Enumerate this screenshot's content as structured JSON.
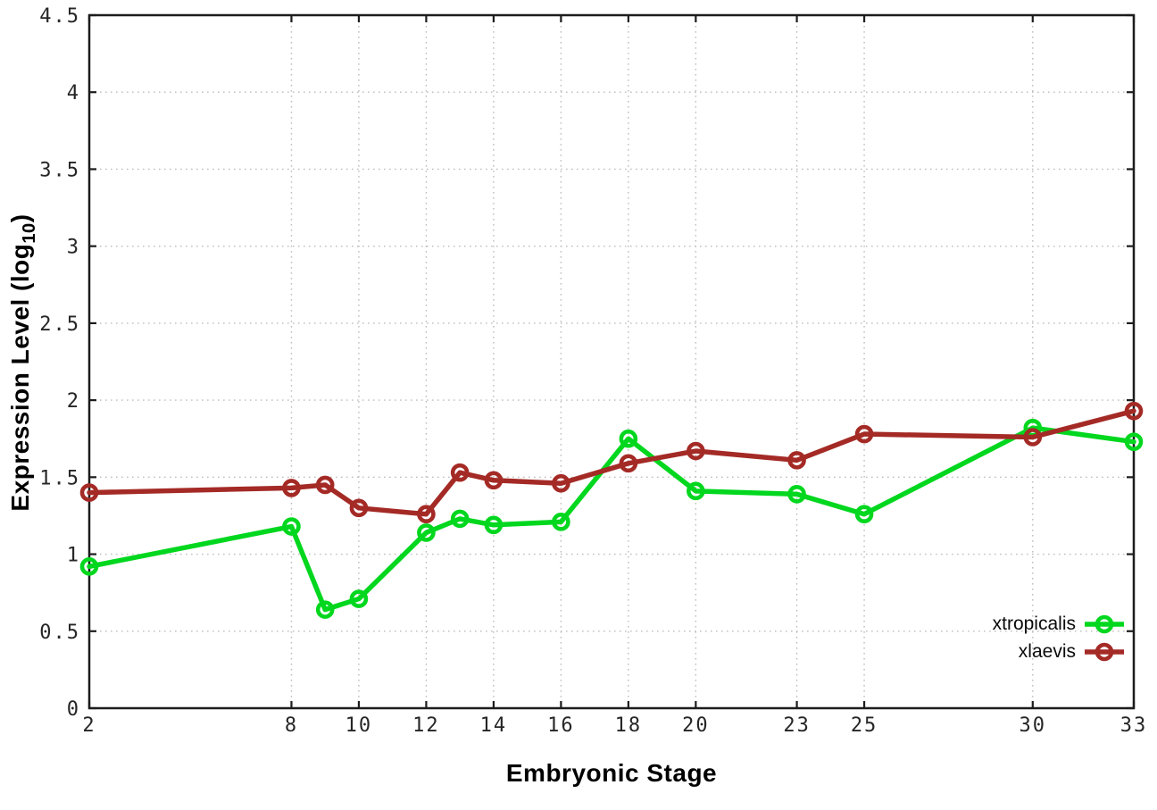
{
  "chart_data": {
    "type": "line",
    "title": "",
    "xlabel": "Embryonic Stage",
    "ylabel": {
      "pre": "Expression Level (log",
      "sub": "10",
      "post": ")"
    },
    "xlim": [
      2,
      33
    ],
    "ylim": [
      0,
      4.5
    ],
    "x_ticks": [
      2,
      8,
      10,
      12,
      14,
      16,
      18,
      20,
      23,
      25,
      30,
      33
    ],
    "x_tick_labels": [
      "2",
      "8",
      "10",
      "12",
      "14",
      "16",
      "18",
      "20",
      "23",
      "25",
      "30",
      "33"
    ],
    "y_ticks": [
      0,
      0.5,
      1,
      1.5,
      2,
      2.5,
      3,
      3.5,
      4,
      4.5
    ],
    "y_tick_labels": [
      "0",
      "0.5",
      "1",
      "1.5",
      "2",
      "2.5",
      "3",
      "3.5",
      "4",
      "4.5"
    ],
    "grid": true,
    "grid_style": "dotted",
    "legend_position": "bottom-right-inside",
    "x": [
      2,
      8,
      9,
      10,
      12,
      13,
      14,
      16,
      18,
      20,
      23,
      25,
      30,
      33
    ],
    "series": [
      {
        "name": "xtropicalis",
        "color": "#00d71e",
        "marker": "open-circle",
        "values": [
          0.92,
          1.18,
          0.64,
          0.71,
          1.14,
          1.23,
          1.19,
          1.21,
          1.75,
          1.41,
          1.39,
          1.26,
          1.82,
          1.73
        ]
      },
      {
        "name": "xlaevis",
        "color": "#a42a26",
        "marker": "open-circle",
        "values": [
          1.4,
          1.43,
          1.45,
          1.3,
          1.26,
          1.53,
          1.48,
          1.46,
          1.59,
          1.67,
          1.61,
          1.78,
          1.76,
          1.93
        ]
      }
    ],
    "colors": {
      "border": "#1c1c1c",
      "grid": "#bdbdbd",
      "tick_text": "#262626",
      "background": "#ffffff"
    }
  }
}
